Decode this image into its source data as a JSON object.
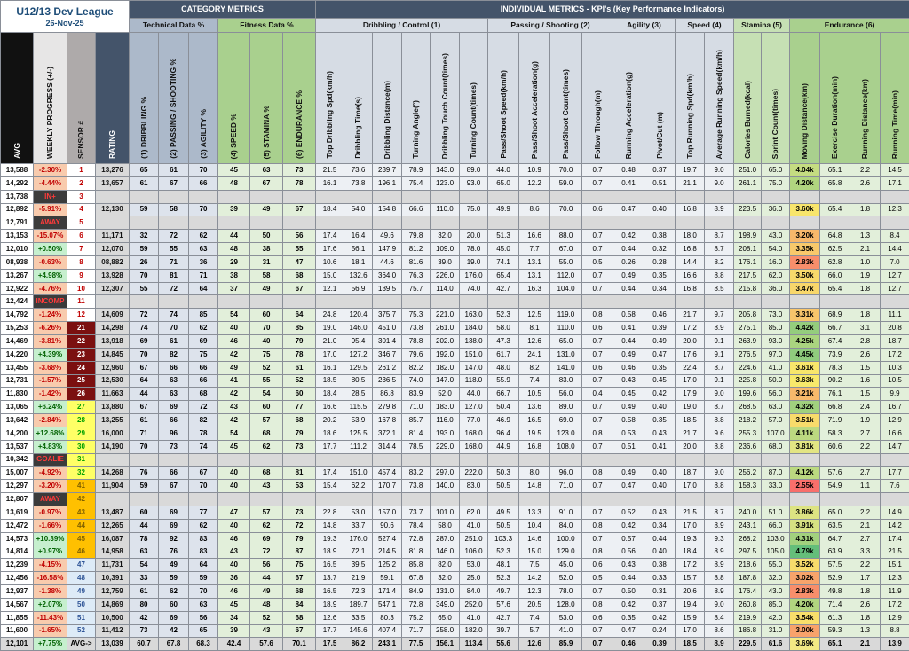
{
  "header": {
    "title": "U12/13 Dev League",
    "date": "26-Nov-25",
    "category_metrics": "CATEGORY METRICS",
    "individual_metrics": "INDIVIDUAL METRICS - KPI's (Key Performance Indicators)"
  },
  "table": {
    "groups": [
      "Technical Data %",
      "Fitness Data %",
      "Dribbling / Control (1)",
      "Passing / Shooting (2)",
      "Agility (3)",
      "Speed (4)",
      "Stamina (5)",
      "Endurance (6)"
    ],
    "columns": [
      "AVG",
      "WEEKLY PROGRESS (+/-)",
      "SENSOR #",
      "RATING",
      "(1) DRIBBLING %",
      "(2) PASSING / SHOOTING %",
      "(3) AGILITY %",
      "(4) SPEED %",
      "(5) STAMINA %",
      "(6) ENDURANCE %",
      "Top Dribbling Spd(km/h)",
      "Dribbling Time(s)",
      "Dribbling Distance(m)",
      "Turning Angle(°)",
      "Dribbling Touch Count(times)",
      "Turning Count(times)",
      "Pass/Shoot Speed(km/h)",
      "Pass/Shoot Acceleration(g)",
      "Pass/Shoot Count(times)",
      "Follow Through(m)",
      "Running Acceleration(g)",
      "Pivot/Cut (m)",
      "Top Running Spd(km/h)",
      "Average Running Speed(km/h)",
      "Calories Burned(kcal)",
      "Sprint Count(times)",
      "Moving Distance(km)",
      "Exercise Duration(min)",
      "Running Distance(km)",
      "Running Time(min)"
    ],
    "rows": [
      [
        "13,588",
        "-2.30%",
        "1",
        "13,276",
        "65",
        "61",
        "70",
        "45",
        "63",
        "73",
        "21.5",
        "73.6",
        "239.7",
        "78.9",
        "143.0",
        "89.0",
        "44.0",
        "10.9",
        "70.0",
        "0.7",
        "0.48",
        "0.37",
        "19.7",
        "9.0",
        "251.0",
        "65.0",
        "4.04k",
        "65.1",
        "2.2",
        "14.5"
      ],
      [
        "14,292",
        "-4.44%",
        "2",
        "13,657",
        "61",
        "67",
        "66",
        "48",
        "67",
        "78",
        "16.1",
        "73.8",
        "196.1",
        "75.4",
        "123.0",
        "93.0",
        "65.0",
        "12.2",
        "59.0",
        "0.7",
        "0.41",
        "0.51",
        "21.1",
        "9.0",
        "261.1",
        "75.0",
        "4.20k",
        "65.8",
        "2.6",
        "17.1"
      ],
      [
        "13,738",
        "IN+",
        "3",
        null,
        null,
        null,
        null,
        null,
        null,
        null,
        null,
        null,
        null,
        null,
        null,
        null,
        null,
        null,
        null,
        null,
        null,
        null,
        null,
        null,
        null,
        null,
        null,
        null,
        null,
        null
      ],
      [
        "12,892",
        "-5.91%",
        "4",
        "12,130",
        "59",
        "58",
        "70",
        "39",
        "49",
        "67",
        "18.4",
        "54.0",
        "154.8",
        "66.6",
        "110.0",
        "75.0",
        "49.9",
        "8.6",
        "70.0",
        "0.6",
        "0.47",
        "0.40",
        "16.8",
        "8.9",
        "223.5",
        "36.0",
        "3.60k",
        "65.4",
        "1.8",
        "12.3"
      ],
      [
        "12,791",
        "AWAY",
        "5",
        null,
        null,
        null,
        null,
        null,
        null,
        null,
        null,
        null,
        null,
        null,
        null,
        null,
        null,
        null,
        null,
        null,
        null,
        null,
        null,
        null,
        null,
        null,
        null,
        null,
        null,
        null
      ],
      [
        "13,153",
        "-15.07%",
        "6",
        "11,171",
        "32",
        "72",
        "62",
        "44",
        "50",
        "56",
        "17.4",
        "16.4",
        "49.6",
        "79.8",
        "32.0",
        "20.0",
        "51.3",
        "16.6",
        "88.0",
        "0.7",
        "0.42",
        "0.38",
        "18.0",
        "8.7",
        "198.9",
        "43.0",
        "3.20k",
        "64.8",
        "1.3",
        "8.4"
      ],
      [
        "12,010",
        "+0.50%",
        "7",
        "12,070",
        "59",
        "55",
        "63",
        "48",
        "38",
        "55",
        "17.6",
        "56.1",
        "147.9",
        "81.2",
        "109.0",
        "78.0",
        "45.0",
        "7.7",
        "67.0",
        "0.7",
        "0.44",
        "0.32",
        "16.8",
        "8.7",
        "208.1",
        "54.0",
        "3.35k",
        "62.5",
        "2.1",
        "14.4"
      ],
      [
        "08,938",
        "-0.63%",
        "8",
        "08,882",
        "26",
        "71",
        "36",
        "29",
        "31",
        "47",
        "10.6",
        "18.1",
        "44.6",
        "81.6",
        "39.0",
        "19.0",
        "74.1",
        "13.1",
        "55.0",
        "0.5",
        "0.26",
        "0.28",
        "14.4",
        "8.2",
        "176.1",
        "16.0",
        "2.83k",
        "62.8",
        "1.0",
        "7.0"
      ],
      [
        "13,267",
        "+4.98%",
        "9",
        "13,928",
        "70",
        "81",
        "71",
        "38",
        "58",
        "68",
        "15.0",
        "132.6",
        "364.0",
        "76.3",
        "226.0",
        "176.0",
        "65.4",
        "13.1",
        "112.0",
        "0.7",
        "0.49",
        "0.35",
        "16.6",
        "8.8",
        "217.5",
        "62.0",
        "3.50k",
        "66.0",
        "1.9",
        "12.7"
      ],
      [
        "12,922",
        "-4.76%",
        "10",
        "12,307",
        "55",
        "72",
        "64",
        "37",
        "49",
        "67",
        "12.1",
        "56.9",
        "139.5",
        "75.7",
        "114.0",
        "74.0",
        "42.7",
        "16.3",
        "104.0",
        "0.7",
        "0.44",
        "0.34",
        "16.8",
        "8.5",
        "215.8",
        "36.0",
        "3.47k",
        "65.4",
        "1.8",
        "12.7"
      ],
      [
        "12,424",
        "INCOMP",
        "11",
        null,
        null,
        null,
        null,
        null,
        null,
        null,
        null,
        null,
        null,
        null,
        null,
        null,
        null,
        null,
        null,
        null,
        null,
        null,
        null,
        null,
        null,
        null,
        null,
        null,
        null,
        null
      ],
      [
        "14,792",
        "-1.24%",
        "12",
        "14,609",
        "72",
        "74",
        "85",
        "54",
        "60",
        "64",
        "24.8",
        "120.4",
        "375.7",
        "75.3",
        "221.0",
        "163.0",
        "52.3",
        "12.5",
        "119.0",
        "0.8",
        "0.58",
        "0.46",
        "21.7",
        "9.7",
        "205.8",
        "73.0",
        "3.31k",
        "68.9",
        "1.8",
        "11.1"
      ],
      [
        "15,253",
        "-6.26%",
        "21",
        "14,298",
        "74",
        "70",
        "62",
        "40",
        "70",
        "85",
        "19.0",
        "146.0",
        "451.0",
        "73.8",
        "261.0",
        "184.0",
        "58.0",
        "8.1",
        "110.0",
        "0.6",
        "0.41",
        "0.39",
        "17.2",
        "8.9",
        "275.1",
        "85.0",
        "4.42k",
        "66.7",
        "3.1",
        "20.8"
      ],
      [
        "14,469",
        "-3.81%",
        "22",
        "13,918",
        "69",
        "61",
        "69",
        "46",
        "40",
        "79",
        "21.0",
        "95.4",
        "301.4",
        "78.8",
        "202.0",
        "138.0",
        "47.3",
        "12.6",
        "65.0",
        "0.7",
        "0.44",
        "0.49",
        "20.0",
        "9.1",
        "263.9",
        "93.0",
        "4.25k",
        "67.4",
        "2.8",
        "18.7"
      ],
      [
        "14,220",
        "+4.39%",
        "23",
        "14,845",
        "70",
        "82",
        "75",
        "42",
        "75",
        "78",
        "17.0",
        "127.2",
        "346.7",
        "79.6",
        "192.0",
        "151.0",
        "61.7",
        "24.1",
        "131.0",
        "0.7",
        "0.49",
        "0.47",
        "17.6",
        "9.1",
        "276.5",
        "97.0",
        "4.45k",
        "73.9",
        "2.6",
        "17.2"
      ],
      [
        "13,455",
        "-3.68%",
        "24",
        "12,960",
        "67",
        "66",
        "66",
        "49",
        "52",
        "61",
        "16.1",
        "129.5",
        "261.2",
        "82.2",
        "182.0",
        "147.0",
        "48.0",
        "8.2",
        "141.0",
        "0.6",
        "0.46",
        "0.35",
        "22.4",
        "8.7",
        "224.6",
        "41.0",
        "3.61k",
        "78.3",
        "1.5",
        "10.3"
      ],
      [
        "12,731",
        "-1.57%",
        "25",
        "12,530",
        "64",
        "63",
        "66",
        "41",
        "55",
        "52",
        "18.5",
        "80.5",
        "236.5",
        "74.0",
        "147.0",
        "118.0",
        "55.9",
        "7.4",
        "83.0",
        "0.7",
        "0.43",
        "0.45",
        "17.0",
        "9.1",
        "225.8",
        "50.0",
        "3.63k",
        "90.2",
        "1.6",
        "10.5"
      ],
      [
        "11,830",
        "-1.42%",
        "26",
        "11,663",
        "44",
        "63",
        "68",
        "42",
        "54",
        "60",
        "18.4",
        "28.5",
        "86.8",
        "83.9",
        "52.0",
        "44.0",
        "66.7",
        "10.5",
        "56.0",
        "0.4",
        "0.45",
        "0.42",
        "17.9",
        "9.0",
        "199.6",
        "56.0",
        "3.21k",
        "76.1",
        "1.5",
        "9.9"
      ],
      [
        "13,065",
        "+6.24%",
        "27",
        "13,880",
        "67",
        "69",
        "72",
        "43",
        "60",
        "77",
        "16.6",
        "115.5",
        "279.8",
        "71.0",
        "183.0",
        "127.0",
        "50.4",
        "13.6",
        "89.0",
        "0.7",
        "0.49",
        "0.40",
        "19.0",
        "8.7",
        "268.5",
        "63.0",
        "4.32k",
        "66.8",
        "2.4",
        "16.7"
      ],
      [
        "13,642",
        "-2.84%",
        "28",
        "13,255",
        "61",
        "66",
        "82",
        "42",
        "57",
        "68",
        "20.2",
        "53.9",
        "167.8",
        "85.7",
        "116.0",
        "77.0",
        "46.9",
        "16.5",
        "69.0",
        "0.7",
        "0.58",
        "0.35",
        "18.5",
        "8.8",
        "218.2",
        "57.0",
        "3.51k",
        "71.9",
        "1.9",
        "12.9"
      ],
      [
        "14,200",
        "+12.68%",
        "29",
        "16,000",
        "71",
        "96",
        "78",
        "54",
        "68",
        "79",
        "18.6",
        "125.5",
        "372.1",
        "81.4",
        "193.0",
        "168.0",
        "96.4",
        "19.5",
        "123.0",
        "0.8",
        "0.53",
        "0.43",
        "21.7",
        "9.6",
        "255.3",
        "107.0",
        "4.11k",
        "58.3",
        "2.7",
        "16.6"
      ],
      [
        "13,537",
        "+4.83%",
        "30",
        "14,190",
        "70",
        "73",
        "74",
        "45",
        "62",
        "73",
        "17.7",
        "111.2",
        "314.4",
        "78.5",
        "229.0",
        "168.0",
        "44.9",
        "16.8",
        "108.0",
        "0.7",
        "0.51",
        "0.41",
        "20.0",
        "8.8",
        "236.6",
        "68.0",
        "3.81k",
        "60.6",
        "2.2",
        "14.7"
      ],
      [
        "10,342",
        "GOALIE",
        "31",
        null,
        null,
        null,
        null,
        null,
        null,
        null,
        null,
        null,
        null,
        null,
        null,
        null,
        null,
        null,
        null,
        null,
        null,
        null,
        null,
        null,
        null,
        null,
        null,
        null,
        null,
        null
      ],
      [
        "15,007",
        "-4.92%",
        "32",
        "14,268",
        "76",
        "66",
        "67",
        "40",
        "68",
        "81",
        "17.4",
        "151.0",
        "457.4",
        "83.2",
        "297.0",
        "222.0",
        "50.3",
        "8.0",
        "96.0",
        "0.8",
        "0.49",
        "0.40",
        "18.7",
        "9.0",
        "256.2",
        "87.0",
        "4.12k",
        "57.6",
        "2.7",
        "17.7"
      ],
      [
        "12,297",
        "-3.20%",
        "41",
        "11,904",
        "59",
        "67",
        "70",
        "40",
        "43",
        "53",
        "15.4",
        "62.2",
        "170.7",
        "73.8",
        "140.0",
        "83.0",
        "50.5",
        "14.8",
        "71.0",
        "0.7",
        "0.47",
        "0.40",
        "17.0",
        "8.8",
        "158.3",
        "33.0",
        "2.55k",
        "54.9",
        "1.1",
        "7.6"
      ],
      [
        "12,807",
        "AWAY",
        "42",
        null,
        null,
        null,
        null,
        null,
        null,
        null,
        null,
        null,
        null,
        null,
        null,
        null,
        null,
        null,
        null,
        null,
        null,
        null,
        null,
        null,
        null,
        null,
        null,
        null,
        null,
        null
      ],
      [
        "13,619",
        "-0.97%",
        "43",
        "13,487",
        "60",
        "69",
        "77",
        "47",
        "57",
        "73",
        "22.8",
        "53.0",
        "157.0",
        "73.7",
        "101.0",
        "62.0",
        "49.5",
        "13.3",
        "91.0",
        "0.7",
        "0.52",
        "0.43",
        "21.5",
        "8.7",
        "240.0",
        "51.0",
        "3.86k",
        "65.0",
        "2.2",
        "14.9"
      ],
      [
        "12,472",
        "-1.66%",
        "44",
        "12,265",
        "44",
        "69",
        "62",
        "40",
        "62",
        "72",
        "14.8",
        "33.7",
        "90.6",
        "78.4",
        "58.0",
        "41.0",
        "50.5",
        "10.4",
        "84.0",
        "0.8",
        "0.42",
        "0.34",
        "17.0",
        "8.9",
        "243.1",
        "66.0",
        "3.91k",
        "63.5",
        "2.1",
        "14.2"
      ],
      [
        "14,573",
        "+10.39%",
        "45",
        "16,087",
        "78",
        "92",
        "83",
        "46",
        "69",
        "79",
        "19.3",
        "176.0",
        "527.4",
        "72.8",
        "287.0",
        "251.0",
        "103.3",
        "14.6",
        "100.0",
        "0.7",
        "0.57",
        "0.44",
        "19.3",
        "9.3",
        "268.2",
        "103.0",
        "4.31k",
        "64.7",
        "2.7",
        "17.4"
      ],
      [
        "14,814",
        "+0.97%",
        "46",
        "14,958",
        "63",
        "76",
        "83",
        "43",
        "72",
        "87",
        "18.9",
        "72.1",
        "214.5",
        "81.8",
        "146.0",
        "106.0",
        "52.3",
        "15.0",
        "129.0",
        "0.8",
        "0.56",
        "0.40",
        "18.4",
        "8.9",
        "297.5",
        "105.0",
        "4.79k",
        "63.9",
        "3.3",
        "21.5"
      ],
      [
        "12,239",
        "-4.15%",
        "47",
        "11,731",
        "54",
        "49",
        "64",
        "40",
        "56",
        "75",
        "16.5",
        "39.5",
        "125.2",
        "85.8",
        "82.0",
        "53.0",
        "48.1",
        "7.5",
        "45.0",
        "0.6",
        "0.43",
        "0.38",
        "17.2",
        "8.9",
        "218.6",
        "55.0",
        "3.52k",
        "57.5",
        "2.2",
        "15.1"
      ],
      [
        "12,456",
        "-16.58%",
        "48",
        "10,391",
        "33",
        "59",
        "59",
        "36",
        "44",
        "67",
        "13.7",
        "21.9",
        "59.1",
        "67.8",
        "32.0",
        "25.0",
        "52.3",
        "14.2",
        "52.0",
        "0.5",
        "0.44",
        "0.33",
        "15.7",
        "8.8",
        "187.8",
        "32.0",
        "3.02k",
        "52.9",
        "1.7",
        "12.3"
      ],
      [
        "12,937",
        "-1.38%",
        "49",
        "12,759",
        "61",
        "62",
        "70",
        "46",
        "49",
        "68",
        "16.5",
        "72.3",
        "171.4",
        "84.9",
        "131.0",
        "84.0",
        "49.7",
        "12.3",
        "78.0",
        "0.7",
        "0.50",
        "0.31",
        "20.6",
        "8.9",
        "176.4",
        "43.0",
        "2.83k",
        "49.8",
        "1.8",
        "11.9"
      ],
      [
        "14,567",
        "+2.07%",
        "50",
        "14,869",
        "80",
        "60",
        "63",
        "45",
        "48",
        "84",
        "18.9",
        "189.7",
        "547.1",
        "72.8",
        "349.0",
        "252.0",
        "57.6",
        "20.5",
        "128.0",
        "0.8",
        "0.42",
        "0.37",
        "19.4",
        "9.0",
        "260.8",
        "85.0",
        "4.20k",
        "71.4",
        "2.6",
        "17.2"
      ],
      [
        "11,855",
        "-11.43%",
        "51",
        "10,500",
        "42",
        "69",
        "56",
        "34",
        "52",
        "68",
        "12.6",
        "33.5",
        "80.3",
        "75.2",
        "65.0",
        "41.0",
        "42.7",
        "7.4",
        "53.0",
        "0.6",
        "0.35",
        "0.42",
        "15.9",
        "8.4",
        "219.9",
        "42.0",
        "3.54k",
        "61.3",
        "1.8",
        "12.9"
      ],
      [
        "11,600",
        "-1.65%",
        "52",
        "11,412",
        "73",
        "42",
        "65",
        "39",
        "43",
        "67",
        "17.7",
        "145.6",
        "407.4",
        "71.7",
        "258.0",
        "182.0",
        "39.7",
        "5.7",
        "41.0",
        "0.7",
        "0.47",
        "0.24",
        "17.0",
        "8.6",
        "186.8",
        "31.0",
        "3.00k",
        "59.3",
        "1.3",
        "8.8"
      ]
    ],
    "footer": [
      "12,101",
      "+7.75%",
      "AVG->",
      "13,039",
      "60.7",
      "67.8",
      "68.3",
      "42.4",
      "57.6",
      "70.1",
      "17.5",
      "86.2",
      "243.1",
      "77.5",
      "156.1",
      "113.4",
      "55.6",
      "12.6",
      "85.9",
      "0.7",
      "0.46",
      "0.39",
      "18.5",
      "8.9",
      "229.5",
      "61.6",
      "3.69k",
      "65.1",
      "2.1",
      "13.9"
    ],
    "sensor_styles": [
      "red",
      "red",
      "red",
      "red",
      "red",
      "red",
      "red",
      "red",
      "red",
      "red",
      "red",
      "red",
      "maroon",
      "maroon",
      "maroon",
      "maroon",
      "maroon",
      "maroon",
      "yellow",
      "yellow",
      "yellow",
      "yellow",
      "yellow",
      "yellow",
      "gold",
      "gold",
      "gold",
      "gold",
      "gold",
      "gold",
      "blue",
      "blue",
      "blue",
      "blue",
      "blue",
      "blue"
    ]
  }
}
